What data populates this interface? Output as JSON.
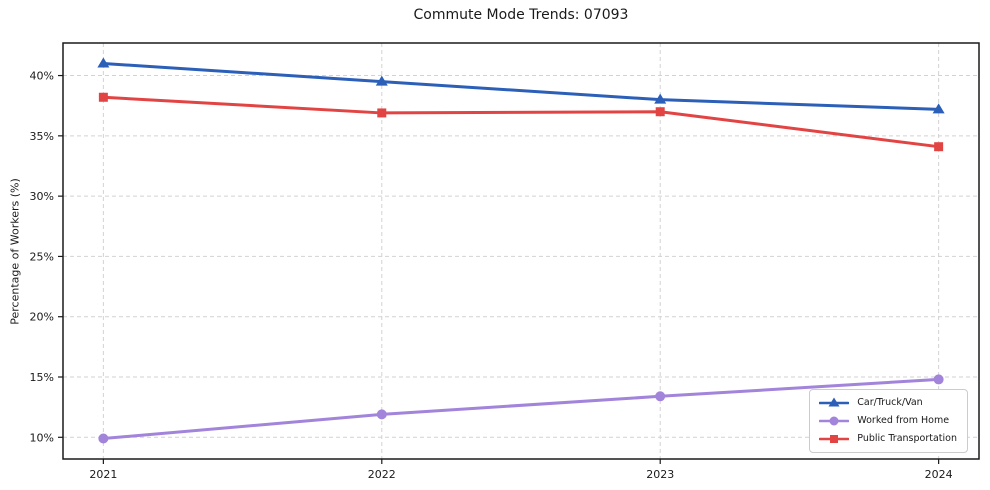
{
  "title": "Commute Mode Trends: 07093",
  "chart_data": {
    "type": "line",
    "title": "Commute Mode Trends: 07093",
    "xlabel": "",
    "ylabel": "Percentage of Workers (%)",
    "categories": [
      "2021",
      "2022",
      "2023",
      "2024"
    ],
    "series": [
      {
        "name": "Car/Truck/Van",
        "values": [
          41.0,
          39.5,
          38.0,
          37.2
        ],
        "color": "#2b5fb8",
        "marker": "triangle"
      },
      {
        "name": "Worked from Home",
        "values": [
          9.9,
          11.9,
          13.4,
          14.8
        ],
        "color": "#a284db",
        "marker": "circle"
      },
      {
        "name": "Public Transportation",
        "values": [
          38.2,
          36.9,
          37.0,
          34.1
        ],
        "color": "#e24444",
        "marker": "square"
      }
    ],
    "y_ticks": [
      10,
      15,
      20,
      25,
      30,
      35,
      40
    ],
    "y_tick_labels": [
      "10%",
      "15%",
      "20%",
      "25%",
      "30%",
      "35%",
      "40%"
    ],
    "ylim": [
      8.2,
      42.7
    ],
    "grid": true,
    "grid_color": "#d2d2d2",
    "frame_color": "#1a1a1a",
    "legend_position": "lower right"
  }
}
